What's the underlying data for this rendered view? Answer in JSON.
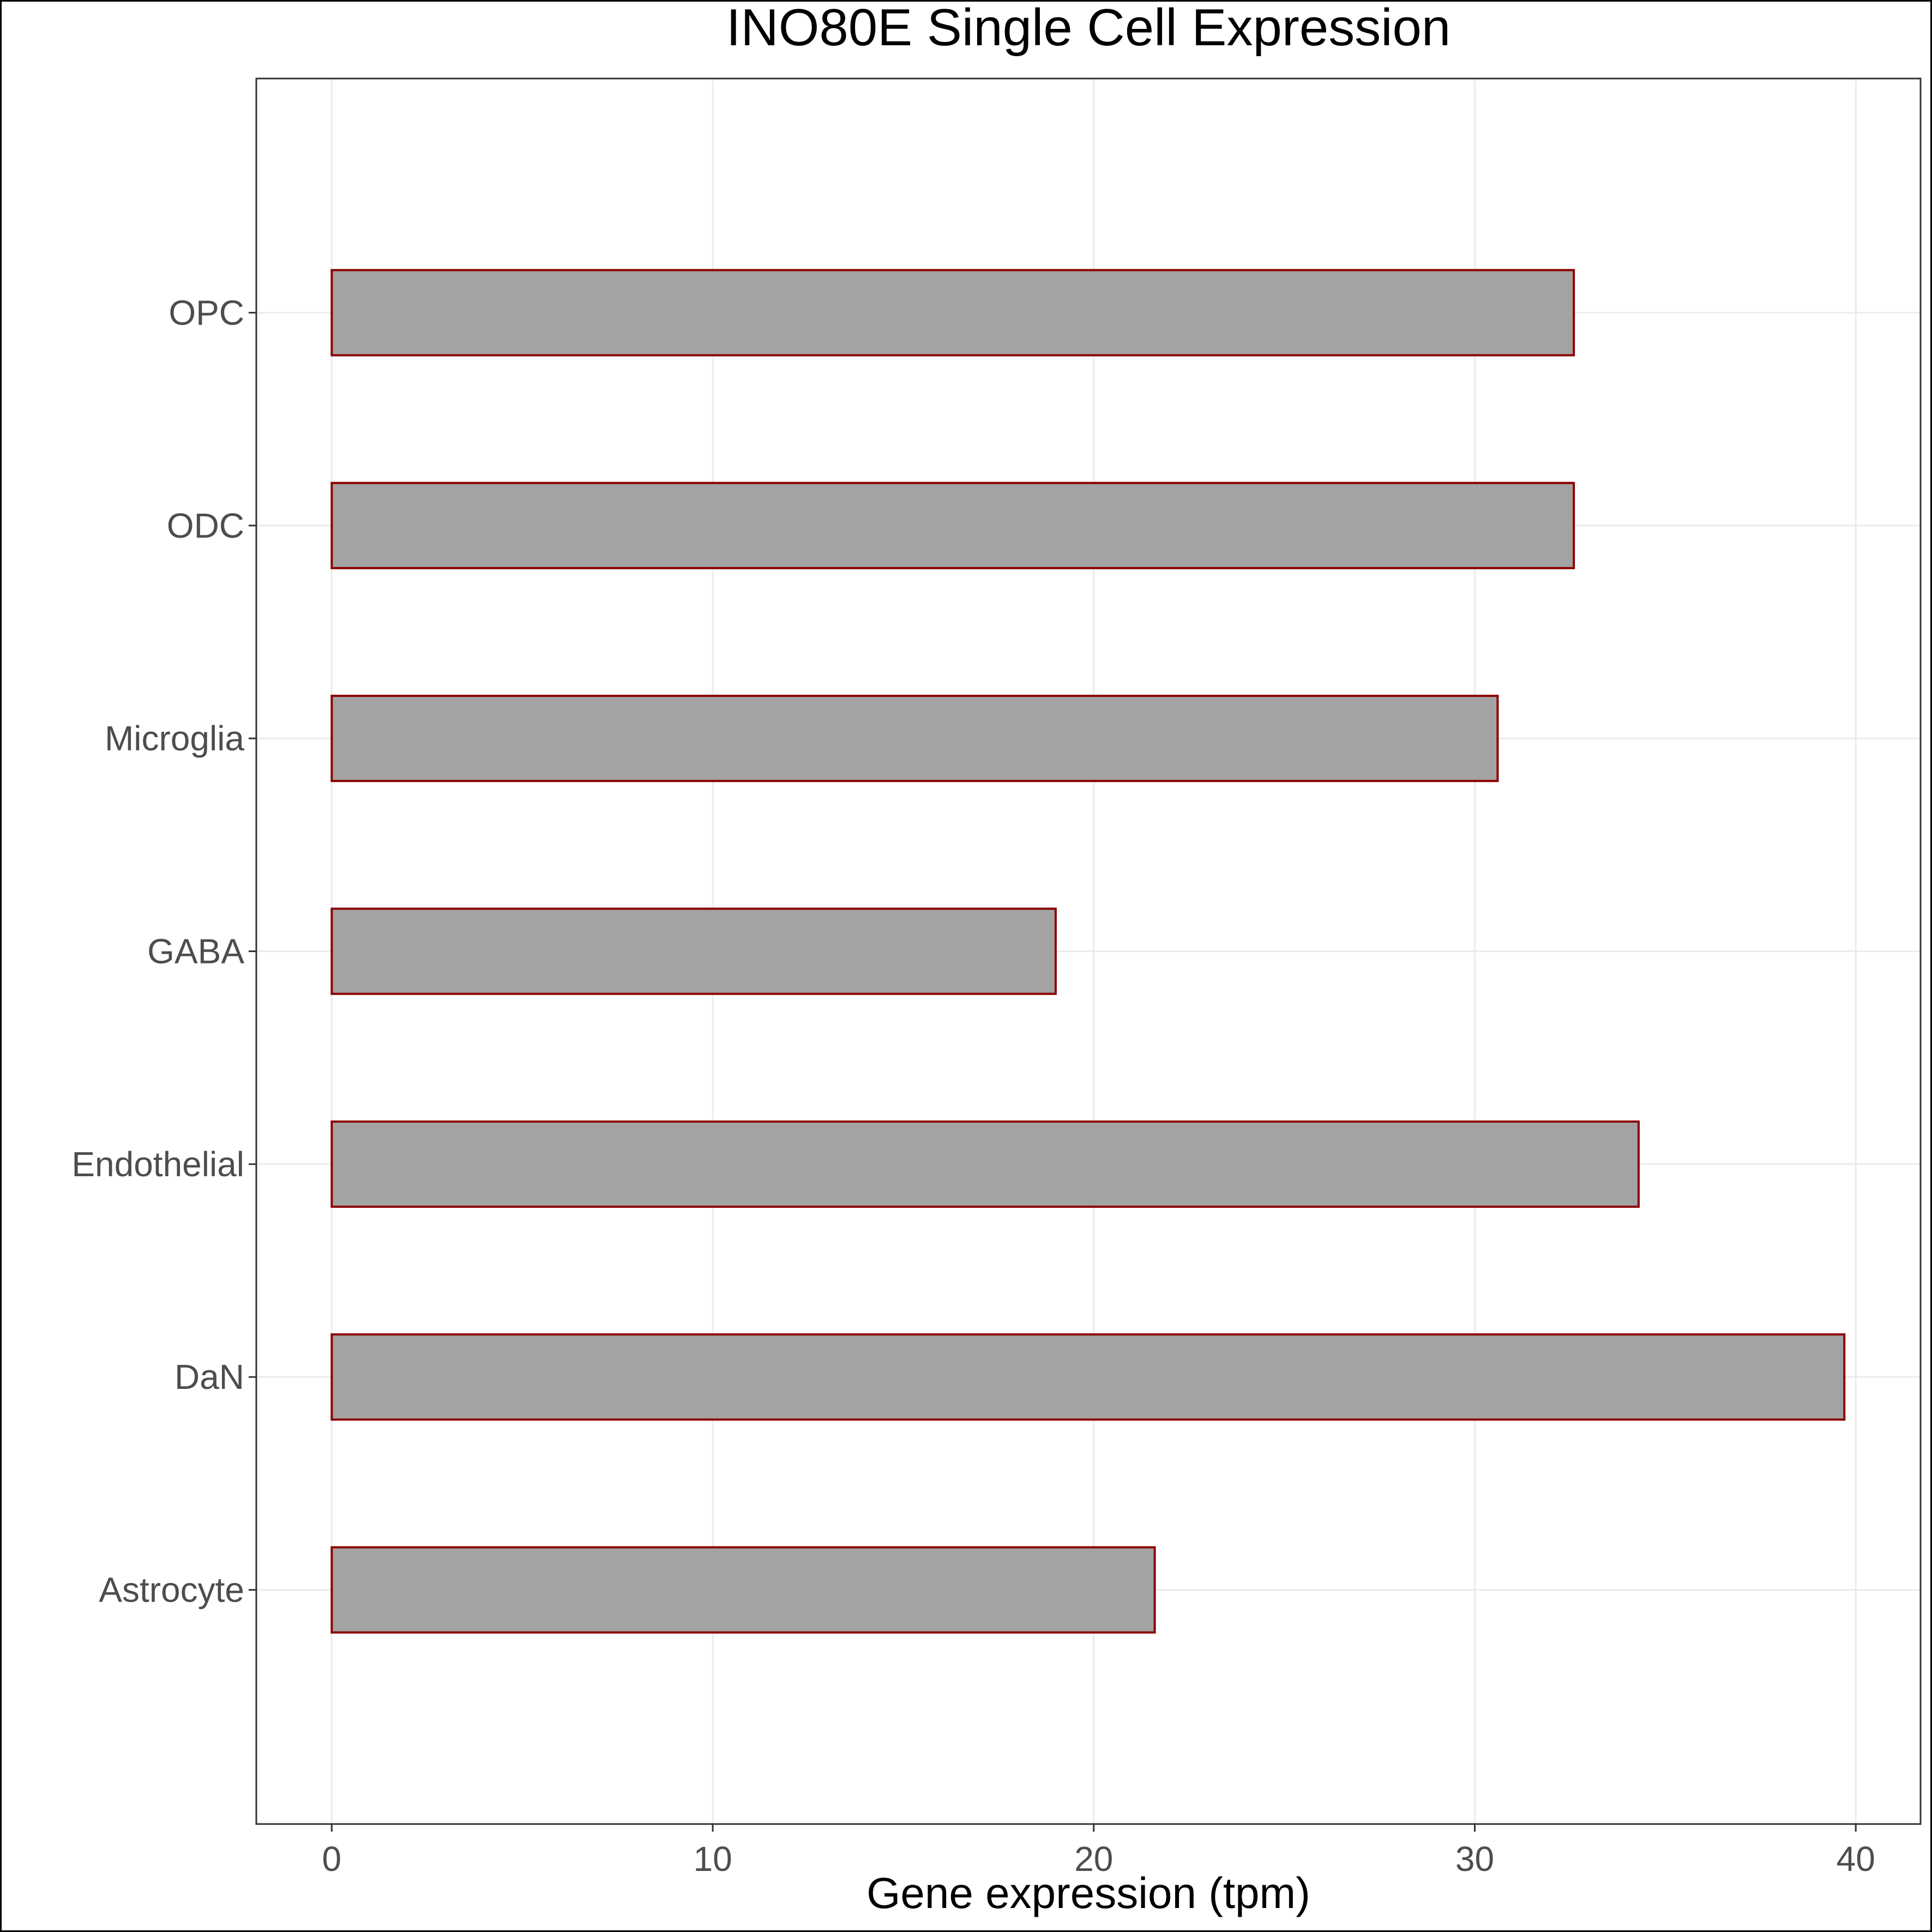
{
  "chart_data": {
    "type": "bar",
    "orientation": "horizontal",
    "title": "INO80E Single Cell Expression",
    "xlabel": "Gene expression (tpm)",
    "ylabel": "",
    "categories": [
      "Astrocyte",
      "DaN",
      "Endothelial",
      "GABA",
      "Microglia",
      "ODC",
      "OPC"
    ],
    "values": [
      21.6,
      39.7,
      34.3,
      19.0,
      30.6,
      32.6,
      32.6
    ],
    "xlim": [
      -1.98,
      41.7
    ],
    "xticks": [
      0,
      10,
      20,
      30,
      40
    ],
    "xtick_labels": [
      "0",
      "10",
      "20",
      "30",
      "40"
    ],
    "grid": true,
    "legend": "none",
    "colors": {
      "bar_fill": "#a3a3a3",
      "bar_stroke": "#8b0000",
      "grid": "#ebebeb",
      "panel_border": "#333333",
      "axis_text": "#4d4d4d",
      "title": "#000000"
    }
  }
}
